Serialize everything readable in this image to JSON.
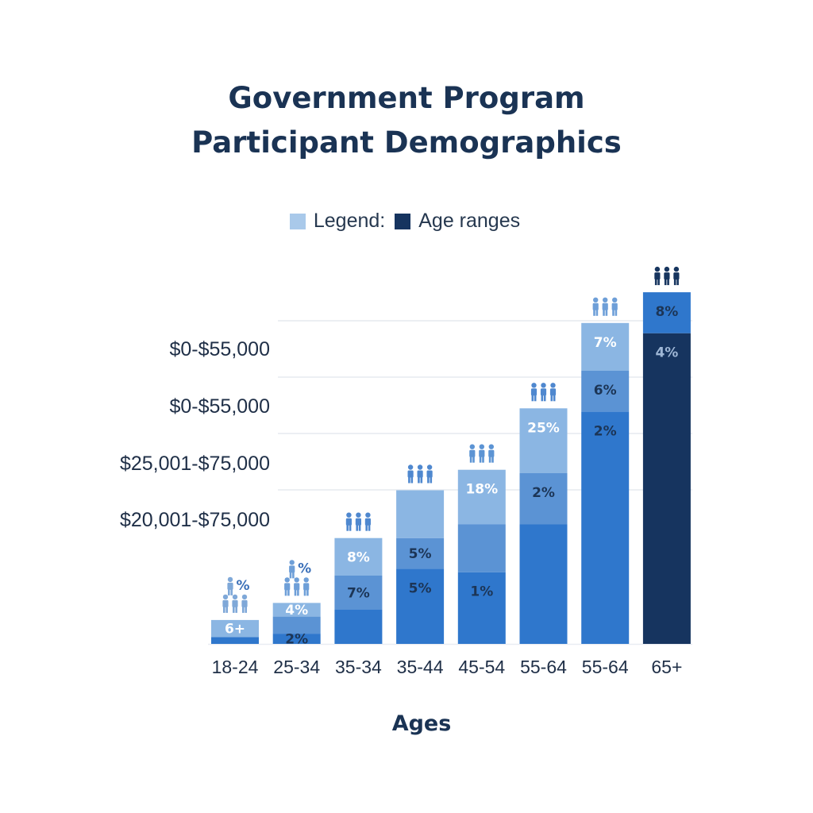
{
  "title": {
    "line1": "Government Program",
    "line2": "Participant Demographics"
  },
  "legend": {
    "items": [
      {
        "label": "Legend:",
        "color": "#a9c9ea"
      },
      {
        "label": "Age ranges",
        "color": "#16345f"
      }
    ]
  },
  "icons": {
    "group": "people-group-icon"
  },
  "colors": {
    "lightest": "#a9c9ea",
    "light": "#8bb6e3",
    "mid": "#5b93d4",
    "strong": "#2f77cc",
    "dark": "#16345f",
    "grid": "#e6eaef",
    "labelLight": "#ffffff",
    "labelDark": "#1c3556"
  },
  "chart_data": {
    "type": "bar",
    "stacked": true,
    "title": "Government Program Participant Demographics",
    "xlabel": "Ages",
    "ylabel": "",
    "categories": [
      "18-24",
      "25-34",
      "35-34",
      "35-44",
      "45-54",
      "55-64",
      "55-64",
      "65+"
    ],
    "y_tick_labels": [
      "$0-$55,000",
      "$0-$55,000",
      "$25,001-$75,000",
      "$20,001-$75,000"
    ],
    "grid": true,
    "legend_position": "top-center",
    "bars": [
      {
        "category": "18-24",
        "segments": [
          {
            "value": 2,
            "color": "strong",
            "label": ""
          },
          {
            "value": 5,
            "color": "light",
            "label": "6+"
          }
        ],
        "icon_label": "%"
      },
      {
        "category": "25-34",
        "segments": [
          {
            "value": 3,
            "color": "strong",
            "label": "2%"
          },
          {
            "value": 5,
            "color": "mid",
            "label": ""
          },
          {
            "value": 4,
            "color": "light",
            "label": "4%"
          }
        ],
        "icon_label": "%"
      },
      {
        "category": "35-34",
        "segments": [
          {
            "value": 10,
            "color": "strong",
            "label": ""
          },
          {
            "value": 10,
            "color": "mid",
            "label": "7%"
          },
          {
            "value": 11,
            "color": "light",
            "label": "8%"
          }
        ]
      },
      {
        "category": "35-44",
        "segments": [
          {
            "value": 22,
            "color": "strong",
            "label": "5%"
          },
          {
            "value": 9,
            "color": "mid",
            "label": "5%"
          },
          {
            "value": 14,
            "color": "light",
            "label": ""
          }
        ],
        "icon_label": ""
      },
      {
        "category": "45-54",
        "segments": [
          {
            "value": 21,
            "color": "strong",
            "label": "1%"
          },
          {
            "value": 14,
            "color": "mid",
            "label": ""
          },
          {
            "value": 16,
            "color": "light",
            "label": "18%"
          }
        ]
      },
      {
        "category": "55-64",
        "segments": [
          {
            "value": 35,
            "color": "strong",
            "label": ""
          },
          {
            "value": 15,
            "color": "mid",
            "label": "2%"
          },
          {
            "value": 19,
            "color": "light",
            "label": "25%"
          }
        ]
      },
      {
        "category": "55-64",
        "segments": [
          {
            "value": 68,
            "color": "strong",
            "label": "2%"
          },
          {
            "value": 12,
            "color": "mid",
            "label": "6%"
          },
          {
            "value": 14,
            "color": "light",
            "label": "7%"
          }
        ]
      },
      {
        "category": "65+",
        "segments": [
          {
            "value": 91,
            "color": "dark",
            "label": "4%"
          },
          {
            "value": 12,
            "color": "strong",
            "label": "8%"
          }
        ]
      }
    ]
  }
}
